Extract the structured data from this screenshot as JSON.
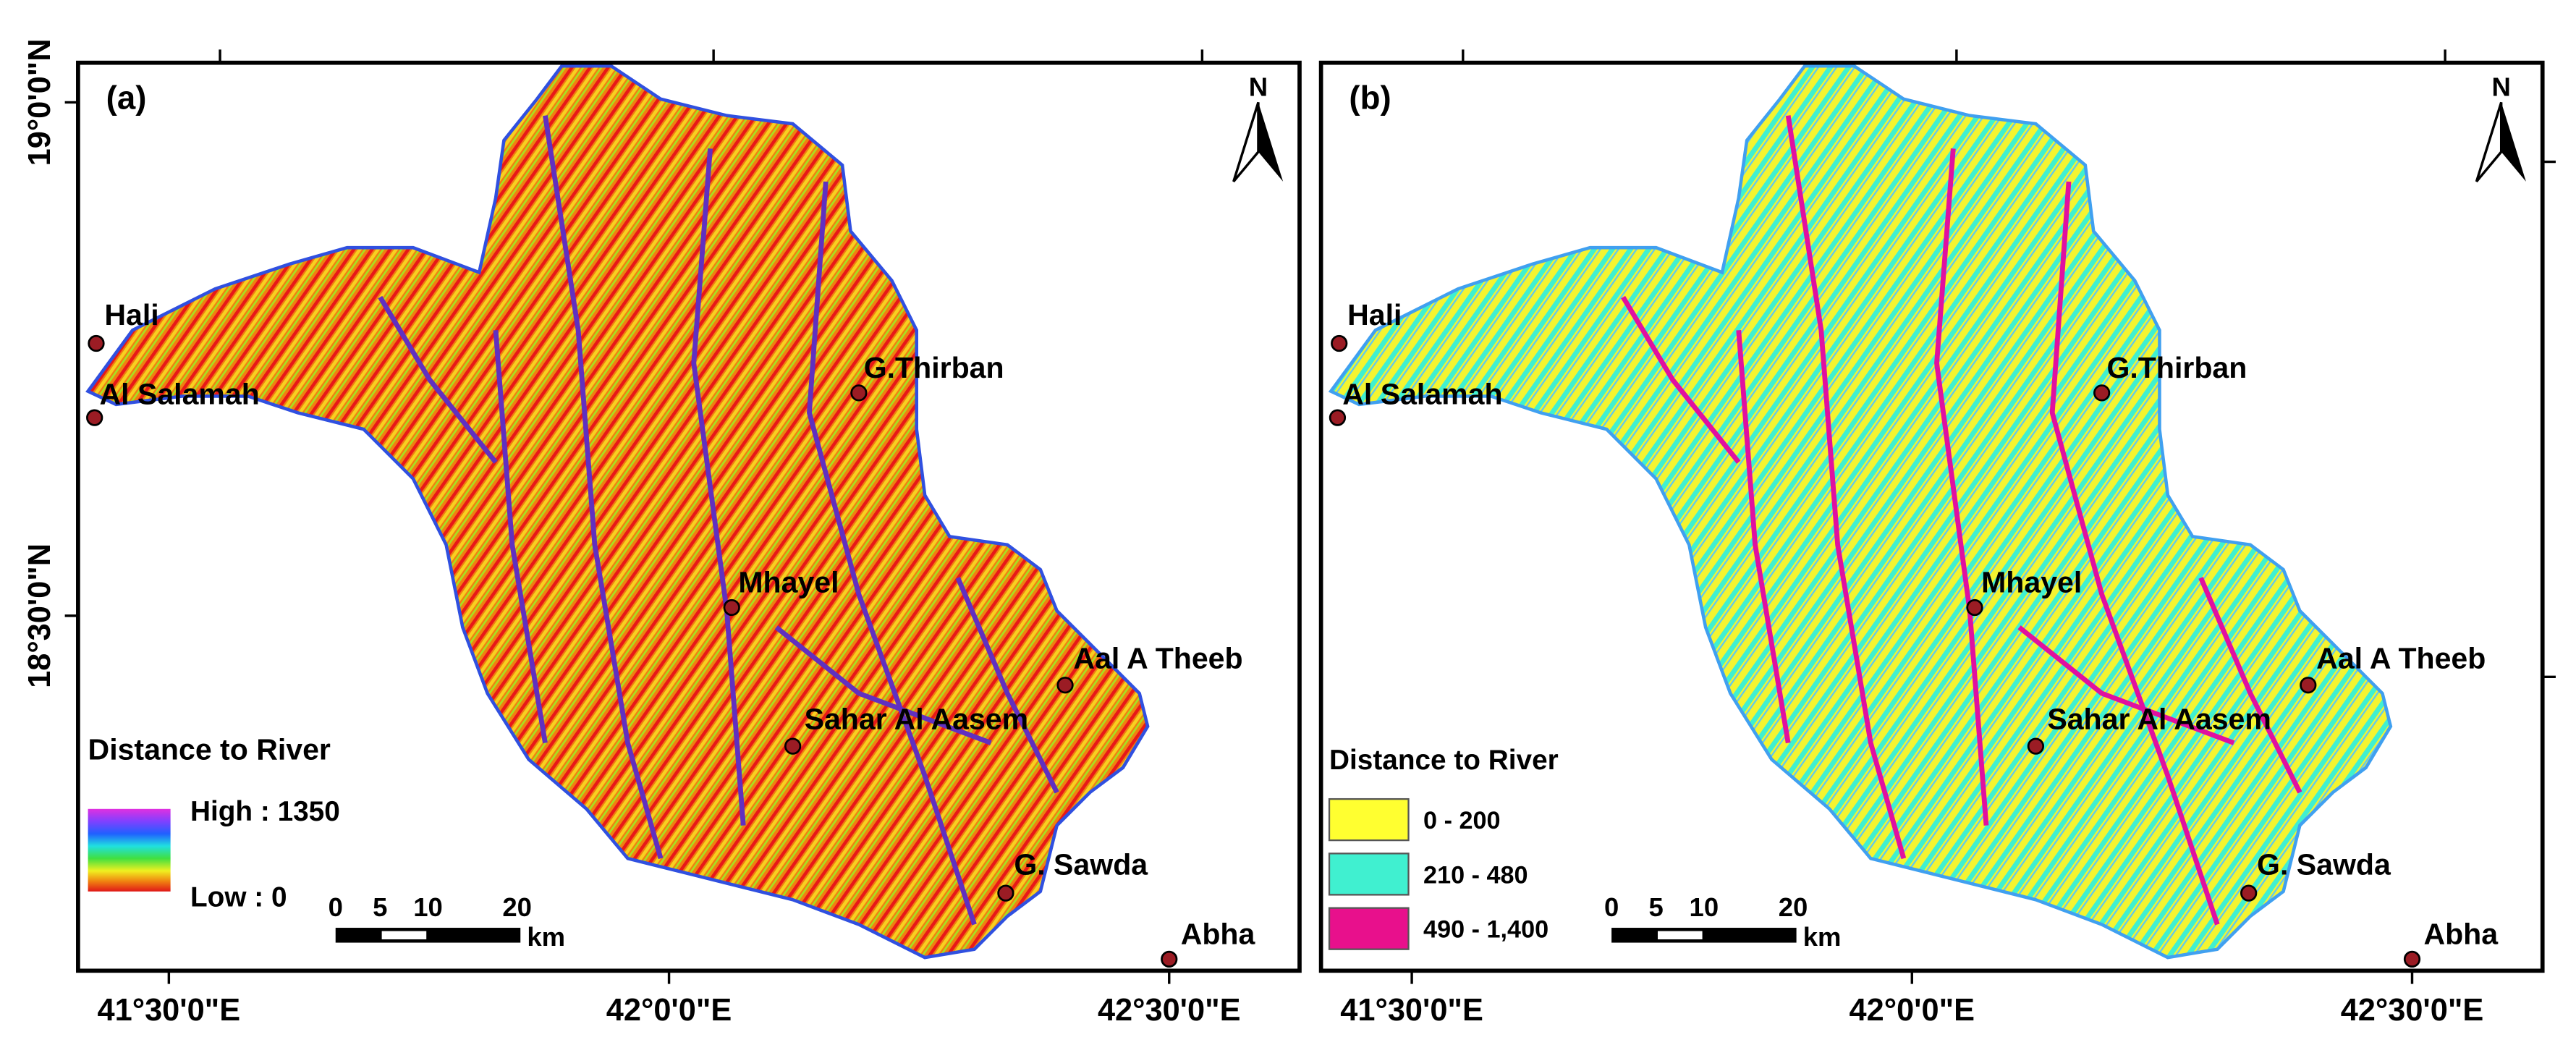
{
  "panels": [
    {
      "label": "(a)",
      "north": "N",
      "y_ticks": [
        "19°0'0\"N",
        "18°30'0\"N"
      ],
      "x_ticks": [
        "41°30'0\"E",
        "42°0'0\"E",
        "42°30'0\"E"
      ],
      "places": [
        "Hali",
        "Al Salamah",
        "G.Thirban",
        "Mhayel",
        "Aal A Theeb",
        "Sahar Al Aasem",
        "G. Sawda",
        "Abha"
      ],
      "legend": {
        "title": "Distance to River",
        "high": "High : 1350",
        "low": "Low : 0"
      },
      "scale": {
        "ticks": [
          "0",
          "5",
          "10",
          "20"
        ],
        "unit": "km"
      }
    },
    {
      "label": "(b)",
      "north": "N",
      "x_ticks": [
        "41°30'0\"E",
        "42°0'0\"E",
        "42°30'0\"E"
      ],
      "places": [
        "Hali",
        "Al Salamah",
        "G.Thirban",
        "Mhayel",
        "Aal A Theeb",
        "Sahar Al Aasem",
        "G. Sawda",
        "Abha"
      ],
      "legend": {
        "title": "Distance to River",
        "items": [
          "0 - 200",
          "210 - 480",
          "490 - 1,400"
        ]
      },
      "scale": {
        "ticks": [
          "0",
          "5",
          "10",
          "20"
        ],
        "unit": "km"
      }
    }
  ]
}
